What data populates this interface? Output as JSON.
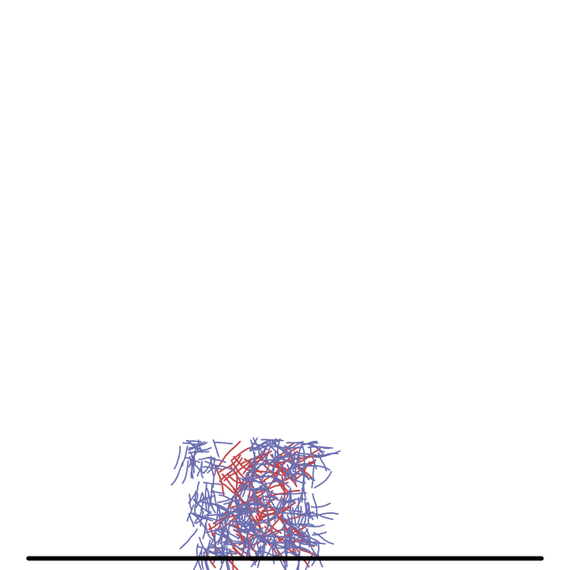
{
  "scene": {
    "background_color": "#ffffff",
    "ground_color": "#000000",
    "outer_strand_color": "#6b6fb0",
    "inner_strand_color": "#c0454a",
    "icon": "tangled-strand-cluster-icon"
  }
}
